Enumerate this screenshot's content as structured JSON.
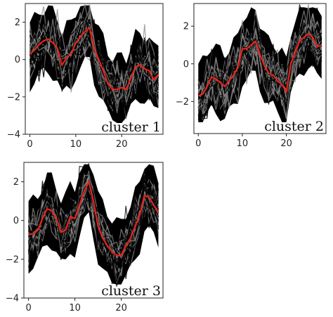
{
  "chart_data": [
    {
      "type": "line",
      "title": "",
      "label": "cluster 1",
      "xlim": [
        -1,
        29
      ],
      "ylim": [
        -4,
        3
      ],
      "xticks": [
        0,
        10,
        20
      ],
      "yticks": [
        -4,
        -2,
        0,
        2
      ],
      "centroid": {
        "x": [
          0,
          1,
          2,
          3,
          4,
          5,
          6,
          7,
          8,
          9,
          10,
          11,
          12,
          13,
          14,
          15,
          16,
          17,
          18,
          19,
          20,
          21,
          22,
          23,
          24,
          25,
          26,
          27,
          28
        ],
        "y": [
          0.3,
          0.5,
          0.8,
          1.0,
          1.1,
          0.9,
          0.6,
          -0.3,
          0.1,
          0.3,
          0.9,
          1.2,
          1.5,
          1.7,
          0.6,
          0.0,
          -0.6,
          -1.3,
          -1.6,
          -1.6,
          -1.5,
          -1.6,
          -1.0,
          -0.4,
          -0.3,
          -0.5,
          -0.6,
          -1.1,
          -0.8
        ]
      },
      "band": {
        "upper": 2.9,
        "lower": -3.4
      }
    },
    {
      "type": "line",
      "title": "",
      "label": "cluster 2",
      "xlim": [
        -1,
        29
      ],
      "ylim": [
        -3.7,
        3.2
      ],
      "xticks": [
        0,
        10,
        20
      ],
      "yticks": [
        -2,
        0,
        2
      ],
      "centroid": {
        "x": [
          0,
          1,
          2,
          3,
          4,
          5,
          6,
          7,
          8,
          9,
          10,
          11,
          12,
          13,
          14,
          15,
          16,
          17,
          18,
          19,
          20,
          21,
          22,
          23,
          24,
          25,
          26,
          27,
          28
        ],
        "y": [
          -1.7,
          -1.6,
          -1.2,
          -0.7,
          -0.8,
          -1.0,
          -1.2,
          -0.9,
          -0.6,
          -0.2,
          0.8,
          0.8,
          1.0,
          1.2,
          0.5,
          -0.1,
          -0.5,
          -0.6,
          -0.9,
          -1.1,
          -1.5,
          0.0,
          0.6,
          1.2,
          1.4,
          1.6,
          1.4,
          0.9,
          1.0
        ]
      },
      "band": {
        "upper": 3.0,
        "lower": -3.1
      }
    },
    {
      "type": "line",
      "title": "",
      "label": "cluster 3",
      "xlim": [
        -1,
        29
      ],
      "ylim": [
        -4,
        3
      ],
      "xticks": [
        0,
        10,
        20
      ],
      "yticks": [
        -4,
        -2,
        0,
        2
      ],
      "centroid": {
        "x": [
          0,
          1,
          2,
          3,
          4,
          5,
          6,
          7,
          8,
          9,
          10,
          11,
          12,
          13,
          14,
          15,
          16,
          17,
          18,
          19,
          20,
          21,
          22,
          23,
          24,
          25,
          26,
          27,
          28
        ],
        "y": [
          -0.7,
          -0.7,
          -0.5,
          0.1,
          0.6,
          0.5,
          0.1,
          -0.6,
          -0.5,
          0.2,
          0.1,
          0.8,
          1.5,
          2.0,
          1.0,
          -0.3,
          -0.9,
          -1.3,
          -1.6,
          -1.8,
          -1.8,
          -1.3,
          -0.9,
          -0.3,
          0.3,
          1.3,
          1.2,
          0.8,
          0.4
        ]
      },
      "band": {
        "upper": 2.9,
        "lower": -3.3
      }
    }
  ],
  "colors": {
    "centroid": "#e8231b",
    "traces": "#000000",
    "faint_traces": "#8a8a8a",
    "axes": "#222222"
  }
}
